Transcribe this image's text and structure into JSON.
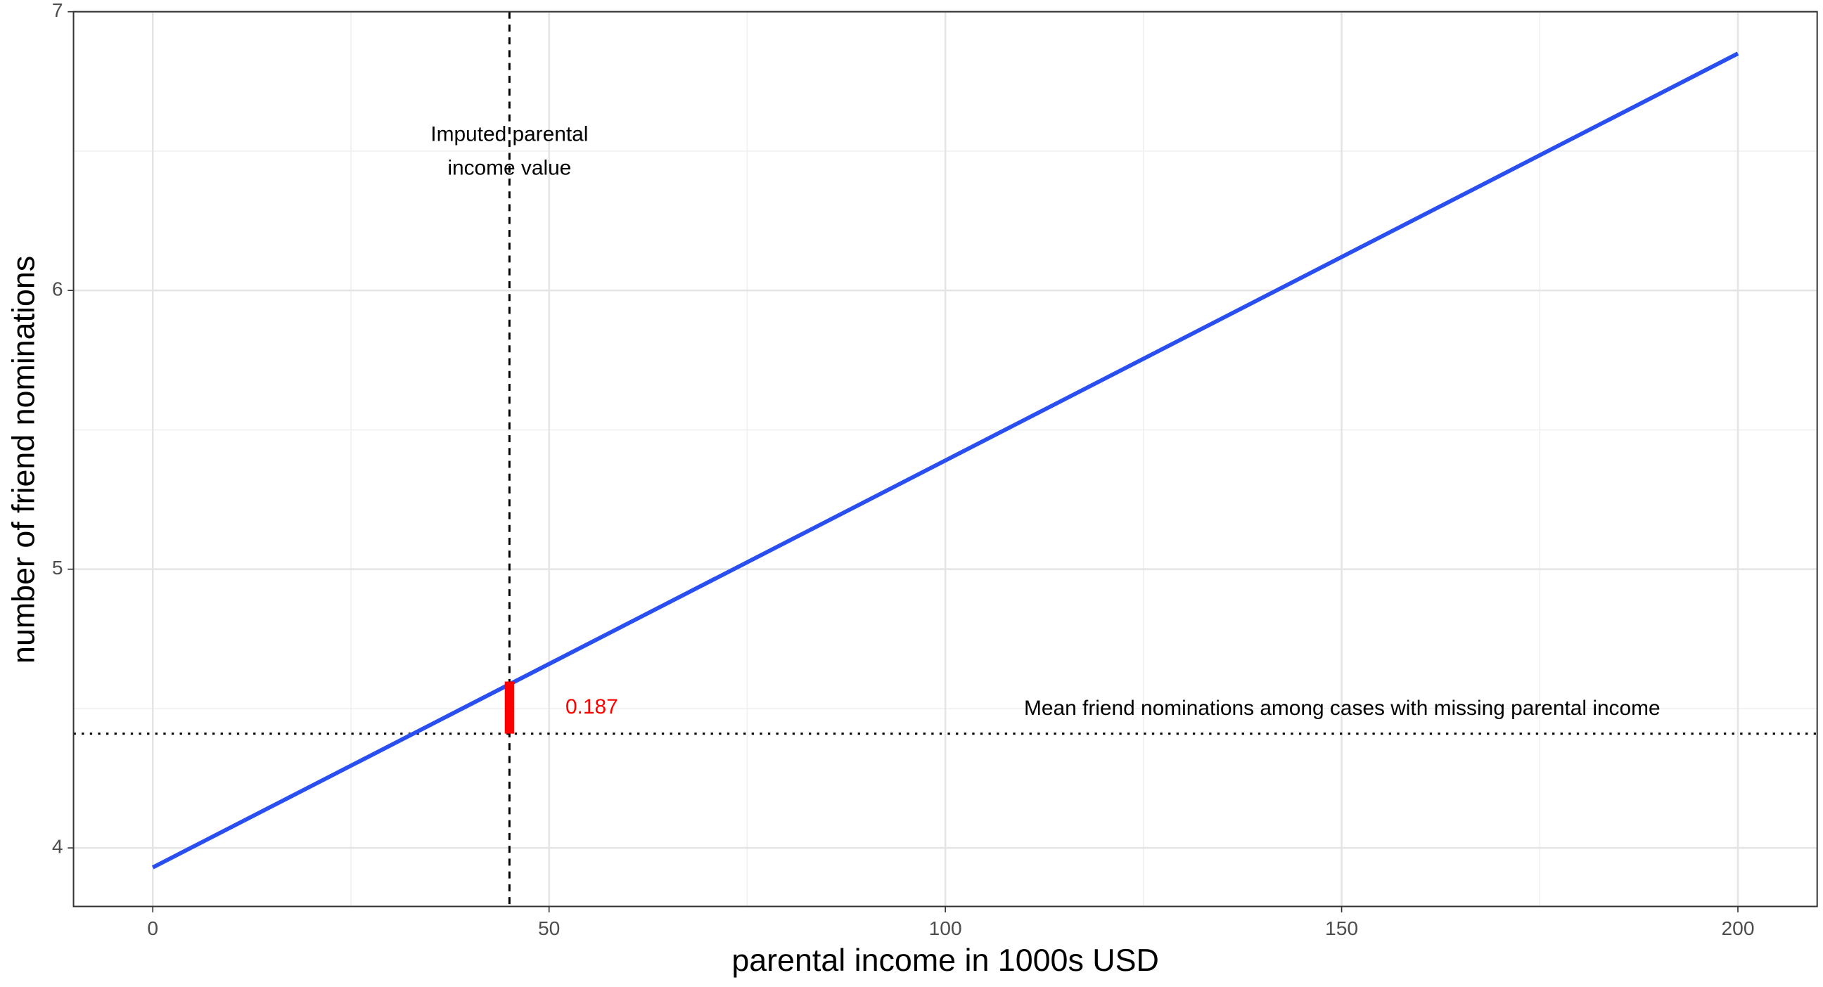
{
  "chart_data": {
    "type": "line",
    "x_label": "parental income in 1000s USD",
    "y_label": "number of friend nominations",
    "x": [
      0,
      200
    ],
    "series": [
      {
        "color": "#2a4ff0",
        "values": [
          3.93,
          6.85
        ]
      }
    ],
    "xlim": [
      -10,
      210
    ],
    "ylim": [
      3.79,
      7
    ],
    "xticks": [
      0,
      50,
      100,
      150,
      200
    ],
    "yticks": [
      4,
      5,
      6,
      7
    ],
    "minor_xgrid": [
      25,
      75,
      125,
      175
    ],
    "minor_ygrid": [
      4.5,
      5.5,
      6.5
    ],
    "grid": true,
    "vline": {
      "x": 45,
      "label": [
        "Imputed parental",
        "income value"
      ]
    },
    "hline": {
      "y": 4.41,
      "label": "Mean friend nominations among cases with missing parental income"
    },
    "difference": {
      "x": 45,
      "top": 4.597,
      "value": 0.187,
      "color": "#ff0000"
    }
  }
}
